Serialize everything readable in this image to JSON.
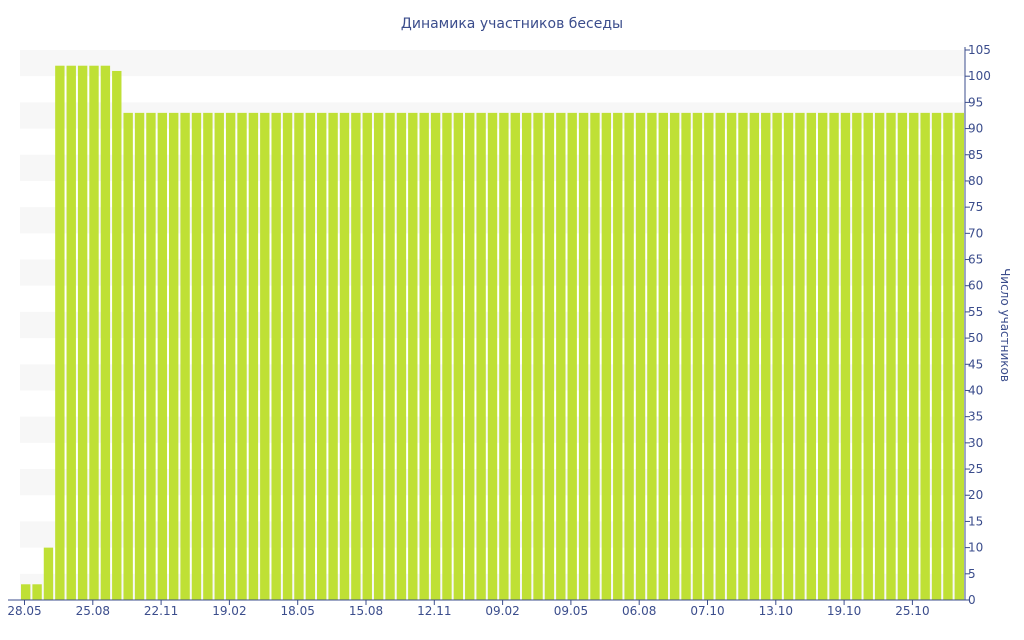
{
  "colors": {
    "bar": "#bfe035",
    "band": "#f7f7f7",
    "axis": "#3b4d8c",
    "text": "#3b4d8c"
  },
  "chart_data": {
    "type": "bar",
    "title": "Динамика участников беседы",
    "xlabel": "",
    "ylabel": "Число участников",
    "ylim": [
      0,
      105
    ],
    "y_ticks": [
      0,
      5,
      10,
      15,
      20,
      25,
      30,
      35,
      40,
      45,
      50,
      55,
      60,
      65,
      70,
      75,
      80,
      85,
      90,
      95,
      100,
      105
    ],
    "y_axis_position": "right",
    "grid": "alternating horizontal bands",
    "legend": "none",
    "x_tick_labels": [
      "28.05",
      "25.08",
      "22.11",
      "19.02",
      "18.05",
      "15.08",
      "12.11",
      "09.02",
      "09.05",
      "06.08",
      "07.10",
      "13.10",
      "19.10",
      "25.10"
    ],
    "values": [
      3,
      3,
      10,
      102,
      102,
      102,
      102,
      102,
      101,
      93,
      93,
      93,
      93,
      93,
      93,
      93,
      93,
      93,
      93,
      93,
      93,
      93,
      93,
      93,
      93,
      93,
      93,
      93,
      93,
      93,
      93,
      93,
      93,
      93,
      93,
      93,
      93,
      93,
      93,
      93,
      93,
      93,
      93,
      93,
      93,
      93,
      93,
      93,
      93,
      93,
      93,
      93,
      93,
      93,
      93,
      93,
      93,
      93,
      93,
      93,
      93,
      93,
      93,
      93,
      93,
      93,
      93,
      93,
      93,
      93,
      93,
      93,
      93,
      93,
      93,
      93,
      93,
      93,
      93,
      93,
      93,
      93,
      93
    ]
  }
}
